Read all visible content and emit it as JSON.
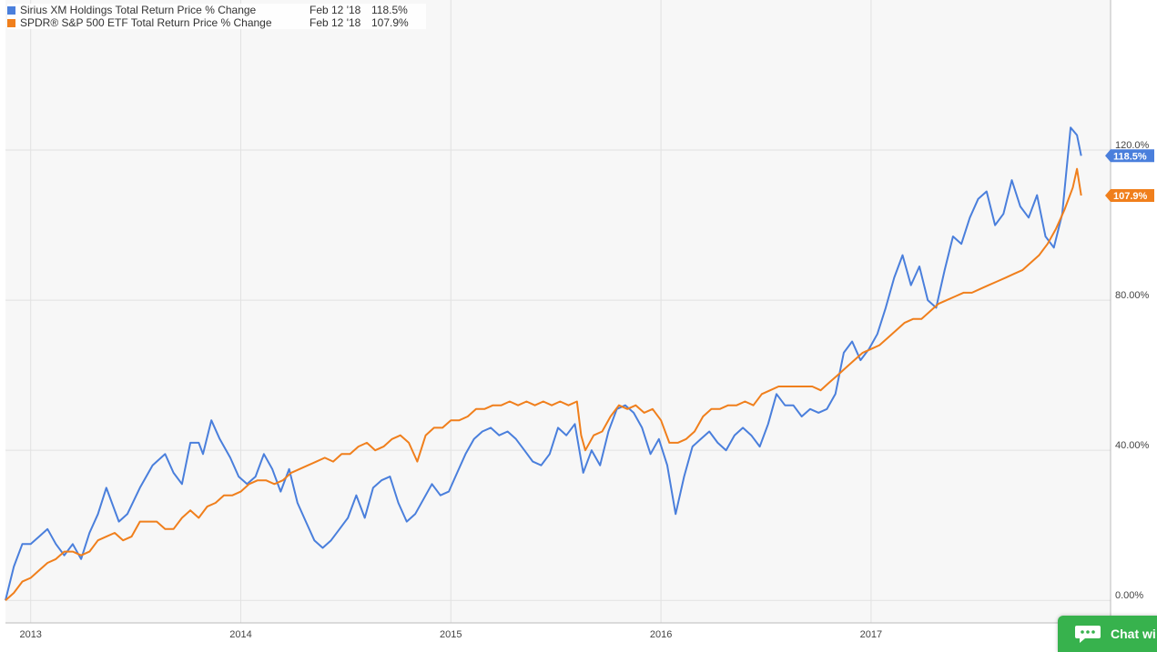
{
  "colors": {
    "series_1": "#4a7fdc",
    "series_2": "#f07f1c",
    "plot_background": "#f7f7f7",
    "grid": "#e2e2e2",
    "chat_button": "#37b24d"
  },
  "legend": {
    "rows": [
      {
        "name": "Sirius XM Holdings Total Return Price % Change",
        "date": "Feb 12 '18",
        "value": "118.5%"
      },
      {
        "name": "SPDR® S&P 500 ETF Total Return Price % Change",
        "date": "Feb 12 '18",
        "value": "107.9%"
      }
    ]
  },
  "chat": {
    "label": "Chat wi",
    "icon": "chat-bubble-icon"
  },
  "chart_data": {
    "type": "line",
    "title": "",
    "xlabel": "",
    "ylabel": "",
    "x_ticks": [
      "2013",
      "2014",
      "2015",
      "2016",
      "2017"
    ],
    "y_ticks": [
      "0.00%",
      "40.00%",
      "80.00%",
      "120.0%"
    ],
    "ylim": [
      -6,
      160
    ],
    "xlim": [
      2012.88,
      2018.14
    ],
    "grid": true,
    "y_axis_side": "right",
    "legend_position": "top-left",
    "end_labels": [
      "118.5%",
      "107.9%"
    ],
    "series": [
      {
        "name": "Sirius XM Holdings Total Return Price % Change",
        "color": "#4a7fdc",
        "points": [
          [
            2012.88,
            0
          ],
          [
            2012.92,
            9
          ],
          [
            2012.96,
            15
          ],
          [
            2013.0,
            15
          ],
          [
            2013.04,
            17
          ],
          [
            2013.08,
            19
          ],
          [
            2013.12,
            15
          ],
          [
            2013.16,
            12
          ],
          [
            2013.2,
            15
          ],
          [
            2013.24,
            11
          ],
          [
            2013.28,
            18
          ],
          [
            2013.32,
            23
          ],
          [
            2013.36,
            30
          ],
          [
            2013.42,
            21
          ],
          [
            2013.46,
            23
          ],
          [
            2013.52,
            30
          ],
          [
            2013.58,
            36
          ],
          [
            2013.64,
            39
          ],
          [
            2013.68,
            34
          ],
          [
            2013.72,
            31
          ],
          [
            2013.76,
            42
          ],
          [
            2013.8,
            42
          ],
          [
            2013.82,
            39
          ],
          [
            2013.86,
            48
          ],
          [
            2013.9,
            43
          ],
          [
            2013.95,
            38
          ],
          [
            2013.99,
            33
          ],
          [
            2014.03,
            31
          ],
          [
            2014.07,
            33
          ],
          [
            2014.11,
            39
          ],
          [
            2014.15,
            35
          ],
          [
            2014.19,
            29
          ],
          [
            2014.23,
            35
          ],
          [
            2014.27,
            26
          ],
          [
            2014.31,
            21
          ],
          [
            2014.35,
            16
          ],
          [
            2014.39,
            14
          ],
          [
            2014.43,
            16
          ],
          [
            2014.47,
            19
          ],
          [
            2014.51,
            22
          ],
          [
            2014.55,
            28
          ],
          [
            2014.59,
            22
          ],
          [
            2014.63,
            30
          ],
          [
            2014.67,
            32
          ],
          [
            2014.71,
            33
          ],
          [
            2014.75,
            26
          ],
          [
            2014.79,
            21
          ],
          [
            2014.83,
            23
          ],
          [
            2014.87,
            27
          ],
          [
            2014.91,
            31
          ],
          [
            2014.95,
            28
          ],
          [
            2014.99,
            29
          ],
          [
            2015.03,
            34
          ],
          [
            2015.07,
            39
          ],
          [
            2015.11,
            43
          ],
          [
            2015.15,
            45
          ],
          [
            2015.19,
            46
          ],
          [
            2015.23,
            44
          ],
          [
            2015.27,
            45
          ],
          [
            2015.31,
            43
          ],
          [
            2015.35,
            40
          ],
          [
            2015.39,
            37
          ],
          [
            2015.43,
            36
          ],
          [
            2015.47,
            39
          ],
          [
            2015.51,
            46
          ],
          [
            2015.55,
            44
          ],
          [
            2015.59,
            47
          ],
          [
            2015.63,
            34
          ],
          [
            2015.67,
            40
          ],
          [
            2015.71,
            36
          ],
          [
            2015.75,
            45
          ],
          [
            2015.79,
            51
          ],
          [
            2015.83,
            52
          ],
          [
            2015.87,
            50
          ],
          [
            2015.91,
            46
          ],
          [
            2015.95,
            39
          ],
          [
            2015.99,
            43
          ],
          [
            2016.03,
            36
          ],
          [
            2016.07,
            23
          ],
          [
            2016.11,
            33
          ],
          [
            2016.15,
            41
          ],
          [
            2016.19,
            43
          ],
          [
            2016.23,
            45
          ],
          [
            2016.27,
            42
          ],
          [
            2016.31,
            40
          ],
          [
            2016.35,
            44
          ],
          [
            2016.39,
            46
          ],
          [
            2016.43,
            44
          ],
          [
            2016.47,
            41
          ],
          [
            2016.51,
            47
          ],
          [
            2016.55,
            55
          ],
          [
            2016.59,
            52
          ],
          [
            2016.63,
            52
          ],
          [
            2016.67,
            49
          ],
          [
            2016.71,
            51
          ],
          [
            2016.75,
            50
          ],
          [
            2016.79,
            51
          ],
          [
            2016.83,
            55
          ],
          [
            2016.87,
            66
          ],
          [
            2016.91,
            69
          ],
          [
            2016.95,
            64
          ],
          [
            2016.99,
            67
          ],
          [
            2017.03,
            71
          ],
          [
            2017.07,
            78
          ],
          [
            2017.11,
            86
          ],
          [
            2017.15,
            92
          ],
          [
            2017.19,
            84
          ],
          [
            2017.23,
            89
          ],
          [
            2017.27,
            80
          ],
          [
            2017.31,
            78
          ],
          [
            2017.35,
            88
          ],
          [
            2017.39,
            97
          ],
          [
            2017.43,
            95
          ],
          [
            2017.47,
            102
          ],
          [
            2017.51,
            107
          ],
          [
            2017.55,
            109
          ],
          [
            2017.59,
            100
          ],
          [
            2017.63,
            103
          ],
          [
            2017.67,
            112
          ],
          [
            2017.71,
            105
          ],
          [
            2017.75,
            102
          ],
          [
            2017.79,
            108
          ],
          [
            2017.83,
            97
          ],
          [
            2017.87,
            94
          ],
          [
            2017.91,
            103
          ],
          [
            2017.95,
            126
          ],
          [
            2017.98,
            124
          ],
          [
            2018.0,
            118.5
          ]
        ]
      },
      {
        "name": "SPDR® S&P 500 ETF Total Return Price % Change",
        "color": "#f07f1c",
        "points": [
          [
            2012.88,
            0
          ],
          [
            2012.92,
            2
          ],
          [
            2012.96,
            5
          ],
          [
            2013.0,
            6
          ],
          [
            2013.04,
            8
          ],
          [
            2013.08,
            10
          ],
          [
            2013.12,
            11
          ],
          [
            2013.16,
            13
          ],
          [
            2013.2,
            13
          ],
          [
            2013.24,
            12
          ],
          [
            2013.28,
            13
          ],
          [
            2013.32,
            16
          ],
          [
            2013.36,
            17
          ],
          [
            2013.4,
            18
          ],
          [
            2013.44,
            16
          ],
          [
            2013.48,
            17
          ],
          [
            2013.52,
            21
          ],
          [
            2013.56,
            21
          ],
          [
            2013.6,
            21
          ],
          [
            2013.64,
            19
          ],
          [
            2013.68,
            19
          ],
          [
            2013.72,
            22
          ],
          [
            2013.76,
            24
          ],
          [
            2013.8,
            22
          ],
          [
            2013.84,
            25
          ],
          [
            2013.88,
            26
          ],
          [
            2013.92,
            28
          ],
          [
            2013.96,
            28
          ],
          [
            2014.0,
            29
          ],
          [
            2014.04,
            31
          ],
          [
            2014.08,
            32
          ],
          [
            2014.12,
            32
          ],
          [
            2014.16,
            31
          ],
          [
            2014.2,
            32
          ],
          [
            2014.24,
            34
          ],
          [
            2014.28,
            35
          ],
          [
            2014.32,
            36
          ],
          [
            2014.36,
            37
          ],
          [
            2014.4,
            38
          ],
          [
            2014.44,
            37
          ],
          [
            2014.48,
            39
          ],
          [
            2014.52,
            39
          ],
          [
            2014.56,
            41
          ],
          [
            2014.6,
            42
          ],
          [
            2014.64,
            40
          ],
          [
            2014.68,
            41
          ],
          [
            2014.72,
            43
          ],
          [
            2014.76,
            44
          ],
          [
            2014.8,
            42
          ],
          [
            2014.84,
            37
          ],
          [
            2014.88,
            44
          ],
          [
            2014.92,
            46
          ],
          [
            2014.96,
            46
          ],
          [
            2015.0,
            48
          ],
          [
            2015.04,
            48
          ],
          [
            2015.08,
            49
          ],
          [
            2015.12,
            51
          ],
          [
            2015.16,
            51
          ],
          [
            2015.2,
            52
          ],
          [
            2015.24,
            52
          ],
          [
            2015.28,
            53
          ],
          [
            2015.32,
            52
          ],
          [
            2015.36,
            53
          ],
          [
            2015.4,
            52
          ],
          [
            2015.44,
            53
          ],
          [
            2015.48,
            52
          ],
          [
            2015.52,
            53
          ],
          [
            2015.56,
            52
          ],
          [
            2015.6,
            53
          ],
          [
            2015.62,
            44
          ],
          [
            2015.64,
            40
          ],
          [
            2015.68,
            44
          ],
          [
            2015.72,
            45
          ],
          [
            2015.76,
            49
          ],
          [
            2015.8,
            52
          ],
          [
            2015.84,
            51
          ],
          [
            2015.88,
            52
          ],
          [
            2015.92,
            50
          ],
          [
            2015.96,
            51
          ],
          [
            2016.0,
            48
          ],
          [
            2016.04,
            42
          ],
          [
            2016.08,
            42
          ],
          [
            2016.12,
            43
          ],
          [
            2016.16,
            45
          ],
          [
            2016.2,
            49
          ],
          [
            2016.24,
            51
          ],
          [
            2016.28,
            51
          ],
          [
            2016.32,
            52
          ],
          [
            2016.36,
            52
          ],
          [
            2016.4,
            53
          ],
          [
            2016.44,
            52
          ],
          [
            2016.48,
            55
          ],
          [
            2016.52,
            56
          ],
          [
            2016.56,
            57
          ],
          [
            2016.6,
            57
          ],
          [
            2016.64,
            57
          ],
          [
            2016.68,
            57
          ],
          [
            2016.72,
            57
          ],
          [
            2016.76,
            56
          ],
          [
            2016.8,
            58
          ],
          [
            2016.84,
            60
          ],
          [
            2016.88,
            62
          ],
          [
            2016.92,
            64
          ],
          [
            2016.96,
            66
          ],
          [
            2017.0,
            67
          ],
          [
            2017.04,
            68
          ],
          [
            2017.08,
            70
          ],
          [
            2017.12,
            72
          ],
          [
            2017.16,
            74
          ],
          [
            2017.2,
            75
          ],
          [
            2017.24,
            75
          ],
          [
            2017.28,
            77
          ],
          [
            2017.32,
            79
          ],
          [
            2017.36,
            80
          ],
          [
            2017.4,
            81
          ],
          [
            2017.44,
            82
          ],
          [
            2017.48,
            82
          ],
          [
            2017.52,
            83
          ],
          [
            2017.56,
            84
          ],
          [
            2017.6,
            85
          ],
          [
            2017.64,
            86
          ],
          [
            2017.68,
            87
          ],
          [
            2017.72,
            88
          ],
          [
            2017.76,
            90
          ],
          [
            2017.8,
            92
          ],
          [
            2017.84,
            95
          ],
          [
            2017.88,
            99
          ],
          [
            2017.92,
            104
          ],
          [
            2017.96,
            110
          ],
          [
            2017.98,
            115
          ],
          [
            2018.0,
            107.9
          ]
        ]
      }
    ]
  }
}
